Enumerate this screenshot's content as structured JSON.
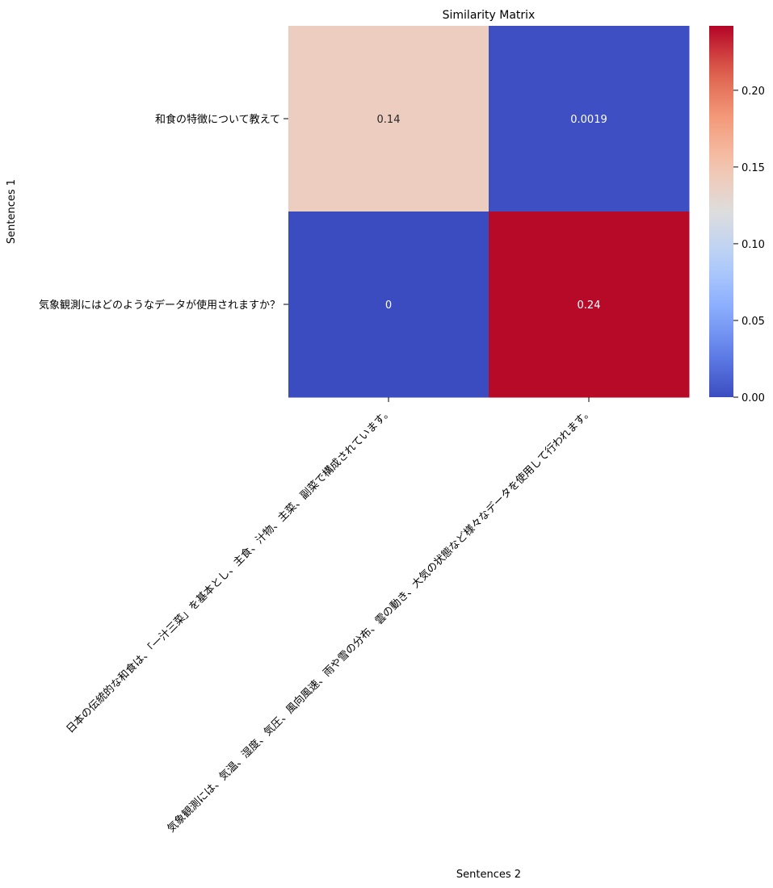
{
  "chart_data": {
    "type": "heatmap",
    "title": "Similarity Matrix",
    "xlabel": "Sentences 2",
    "ylabel": "Sentences 1",
    "x_categories": [
      "日本の伝統的な和食は、「一汁三菜」を基本とし、主食、汁物、主菜、副菜で構成されています。",
      "気象観測には、気温、湿度、気圧、風向風速、雨や雪の分布、雲の動き、大気の状態など様々なデータを使用して行われます。"
    ],
    "y_categories": [
      "和食の特徴について教えて",
      "気象観測にはどのようなデータが使用されますか？"
    ],
    "values": [
      [
        0.14,
        0.0019
      ],
      [
        0.0,
        0.24
      ]
    ],
    "annotations": [
      [
        "0.14",
        "0.0019"
      ],
      [
        "0",
        "0.24"
      ]
    ],
    "colormap": "coolwarm",
    "color_range": [
      0.0,
      0.242
    ],
    "colorbar_ticks": [
      "0.00",
      "0.05",
      "0.10",
      "0.15",
      "0.20"
    ],
    "colorbar_tick_values": [
      0.0,
      0.05,
      0.1,
      0.15,
      0.2
    ],
    "colors": {
      "low": "#3b4cc0",
      "mid": "#dddddd",
      "high": "#b40426",
      "annotation_light": "#ffffff",
      "annotation_dark": "#262626"
    },
    "grid": false,
    "legend": "colorbar-right"
  }
}
